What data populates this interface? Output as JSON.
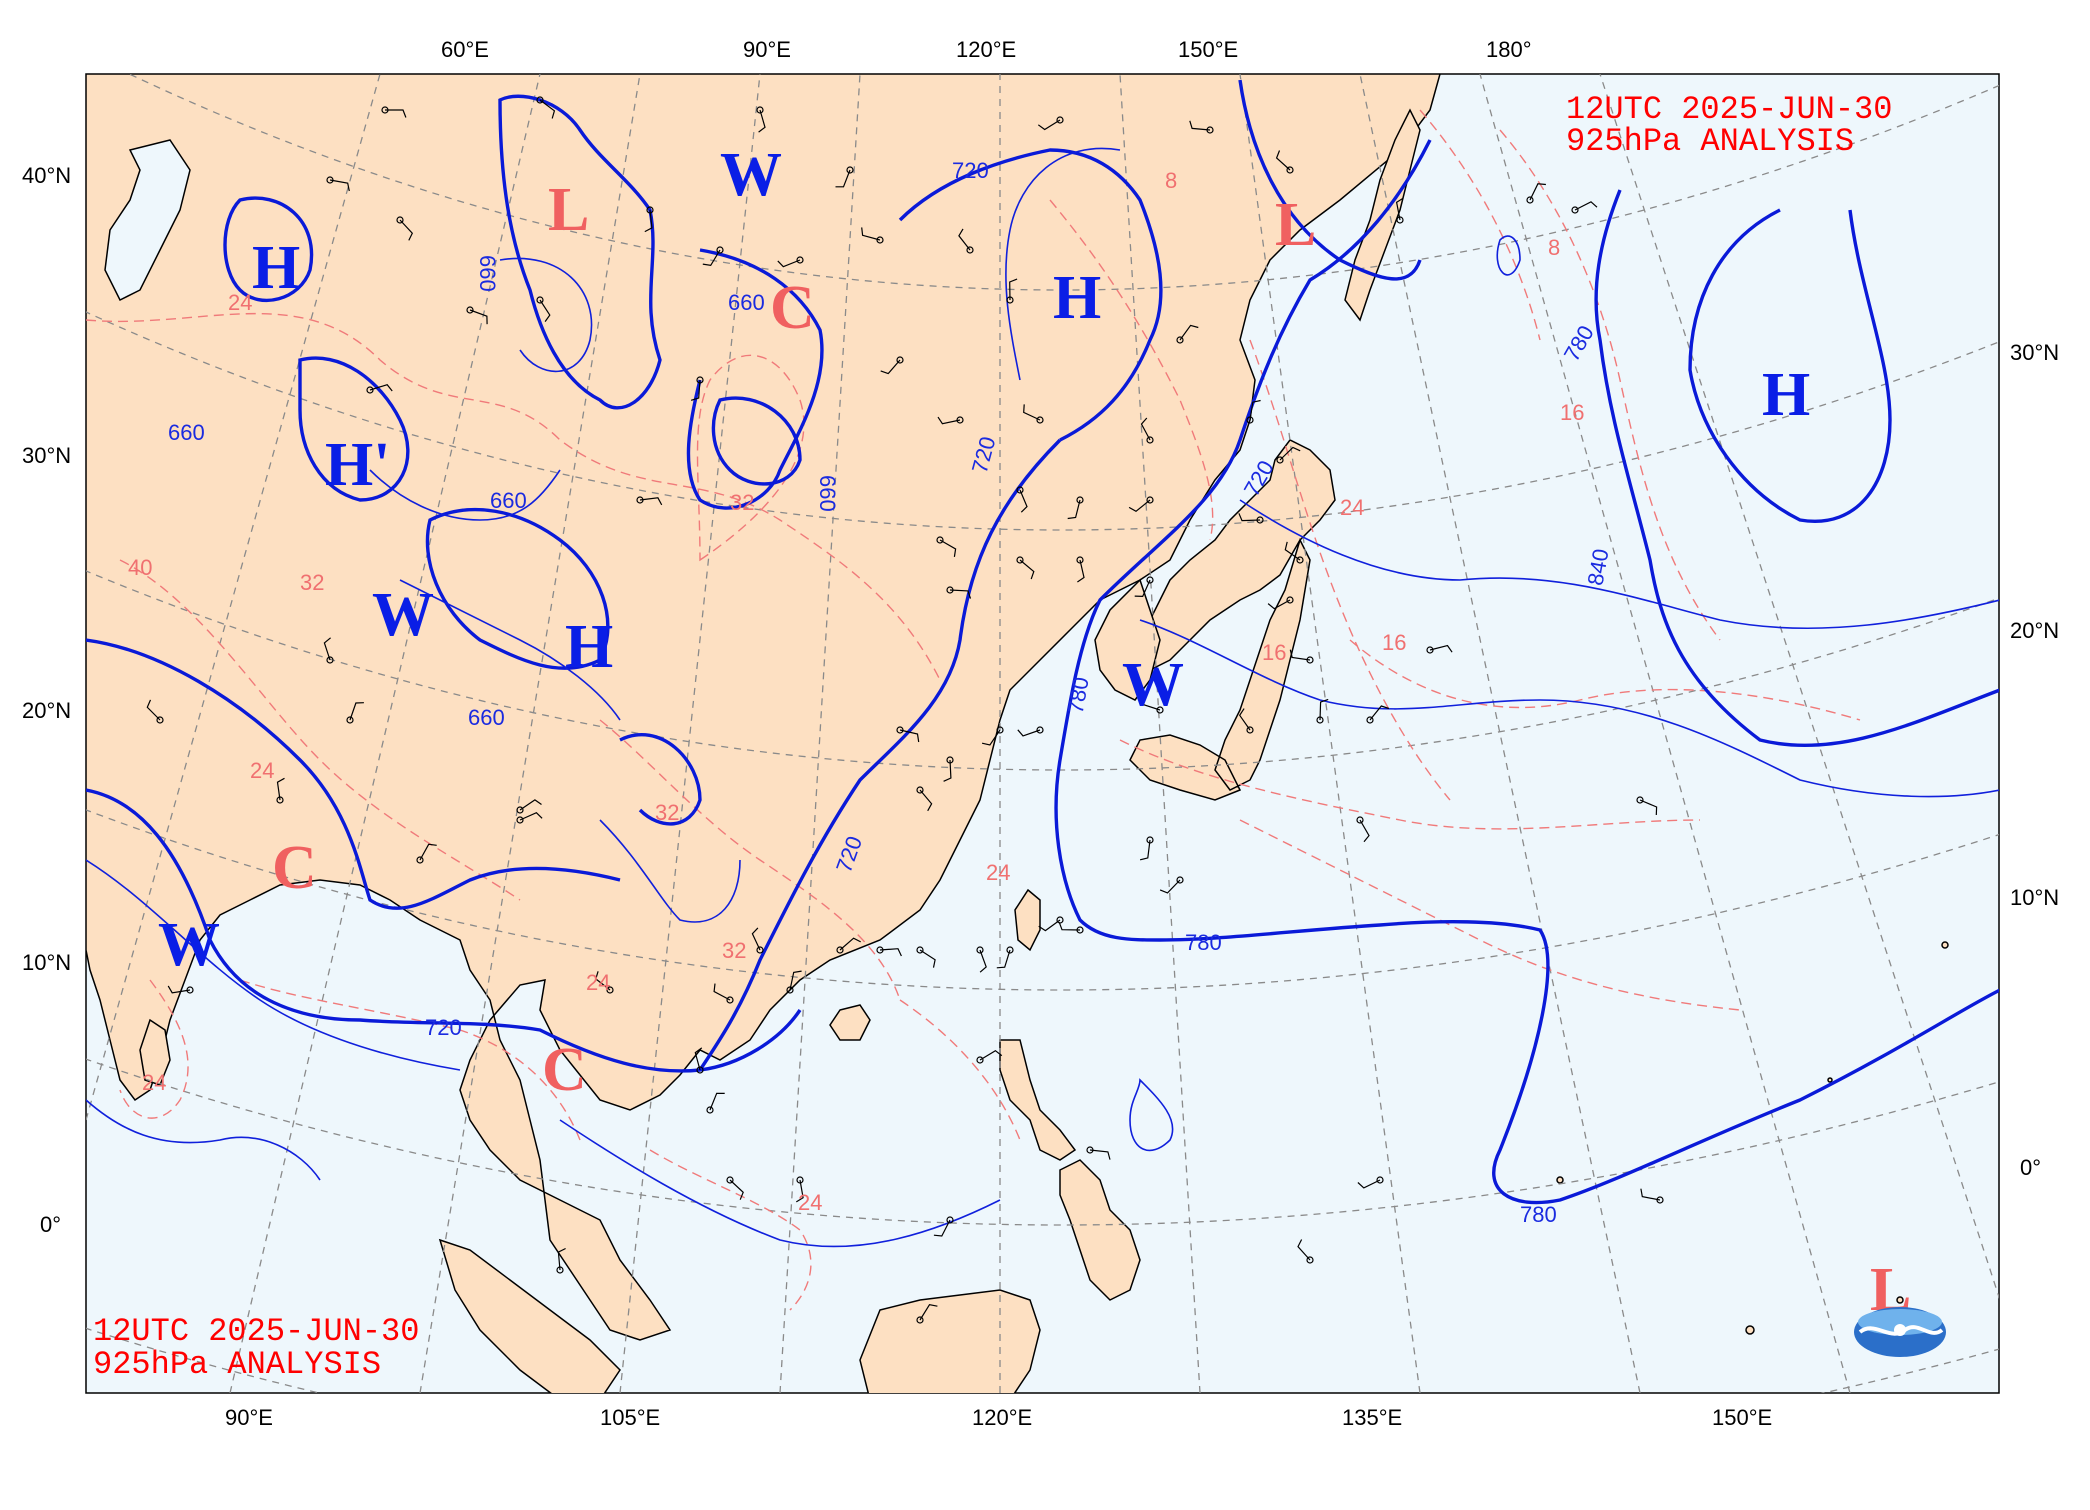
{
  "title": {
    "time": "12UTC  2025-JUN-30",
    "level": "925hPa ANALYSIS",
    "color": "#ff0000"
  },
  "axes": {
    "top_lon": [
      "60°E",
      "90°E",
      "120°E",
      "150°E",
      "180°"
    ],
    "bottom_lon": [
      "90°E",
      "105°E",
      "120°E",
      "135°E",
      "150°E"
    ],
    "left_lat": [
      "40°N",
      "30°N",
      "20°N",
      "10°N",
      "0°"
    ],
    "right_lat": [
      "30°N",
      "20°N",
      "10°N",
      "0°"
    ]
  },
  "pressure_systems": [
    {
      "label": "H",
      "kind": "high"
    },
    {
      "label": "H",
      "kind": "high"
    },
    {
      "label": "H'",
      "kind": "high"
    },
    {
      "label": "H",
      "kind": "high"
    },
    {
      "label": "H",
      "kind": "high"
    },
    {
      "label": "W",
      "kind": "warm"
    },
    {
      "label": "W",
      "kind": "warm"
    },
    {
      "label": "W",
      "kind": "warm"
    },
    {
      "label": "W",
      "kind": "warm"
    },
    {
      "label": "L",
      "kind": "low"
    },
    {
      "label": "L",
      "kind": "low"
    },
    {
      "label": "L",
      "kind": "low"
    },
    {
      "label": "C",
      "kind": "cold"
    },
    {
      "label": "C",
      "kind": "cold"
    },
    {
      "label": "C",
      "kind": "cold"
    }
  ],
  "height_contour_labels": [
    "720",
    "660",
    "660",
    "660",
    "660",
    "660",
    "660",
    "720",
    "720",
    "720",
    "780",
    "780",
    "780",
    "840",
    "780",
    "720"
  ],
  "temperature_contour_labels": [
    "24",
    "32",
    "40",
    "32",
    "24",
    "32",
    "24",
    "32",
    "24",
    "24",
    "16",
    "16",
    "16",
    "8",
    "8",
    "24",
    "24"
  ],
  "colors": {
    "land": "#fde0c2",
    "ocean": "#eef7fc",
    "height_contour": "#0a1ad8",
    "temperature_contour": "#f07a7a",
    "system_blue": "#0a1ee6",
    "system_red": "#f06060"
  },
  "logo": {
    "name": "cwa-logo-icon"
  },
  "stations_note": "wind barbs with station plots"
}
